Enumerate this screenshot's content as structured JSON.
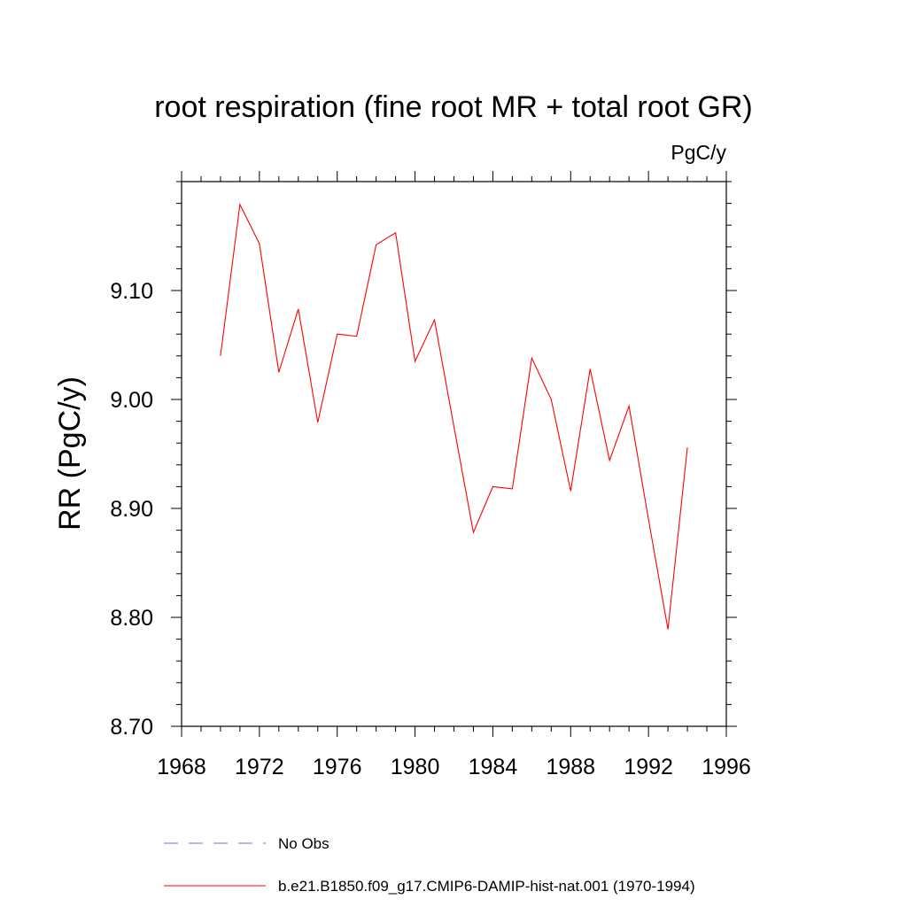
{
  "chart_data": {
    "type": "line",
    "title": "root respiration (fine root MR + total root GR)",
    "units_label": "PgC/y",
    "ylabel": "RR  (PgC/y)",
    "xlabel": "",
    "xlim": [
      1968,
      1996
    ],
    "ylim": [
      8.7,
      9.2
    ],
    "x_ticks": [
      1968,
      1972,
      1976,
      1980,
      1984,
      1988,
      1992,
      1996
    ],
    "x_tick_labels": [
      "1968",
      "1972",
      "1976",
      "1980",
      "1984",
      "1988",
      "1992",
      "1996"
    ],
    "y_ticks": [
      8.7,
      8.8,
      8.9,
      9.0,
      9.1
    ],
    "y_tick_labels": [
      "8.70",
      "8.80",
      "8.90",
      "9.00",
      "9.10"
    ],
    "grid": false,
    "legend_position": "bottom",
    "series": [
      {
        "name": "b.e21.B1850.f09_g17.CMIP6-DAMIP-hist-nat.001 (1970-1994)",
        "color": "#ff0000",
        "style": "solid",
        "x": [
          1970,
          1971,
          1972,
          1973,
          1974,
          1975,
          1976,
          1977,
          1978,
          1979,
          1980,
          1981,
          1982,
          1983,
          1984,
          1985,
          1986,
          1987,
          1988,
          1989,
          1990,
          1991,
          1992,
          1993,
          1994
        ],
        "y": [
          9.04,
          9.179,
          9.143,
          9.025,
          9.083,
          8.979,
          9.06,
          9.058,
          9.142,
          9.153,
          9.035,
          9.073,
          8.975,
          8.878,
          8.92,
          8.918,
          9.038,
          9.0,
          8.916,
          9.028,
          8.944,
          8.994,
          8.89,
          8.789,
          8.956
        ]
      }
    ],
    "legend": [
      {
        "label": "No Obs",
        "color": "#6f6fcf",
        "style": "dashed"
      },
      {
        "label": "b.e21.B1850.f09_g17.CMIP6-DAMIP-hist-nat.001 (1970-1994)",
        "color": "#ff0000",
        "style": "solid"
      }
    ]
  }
}
